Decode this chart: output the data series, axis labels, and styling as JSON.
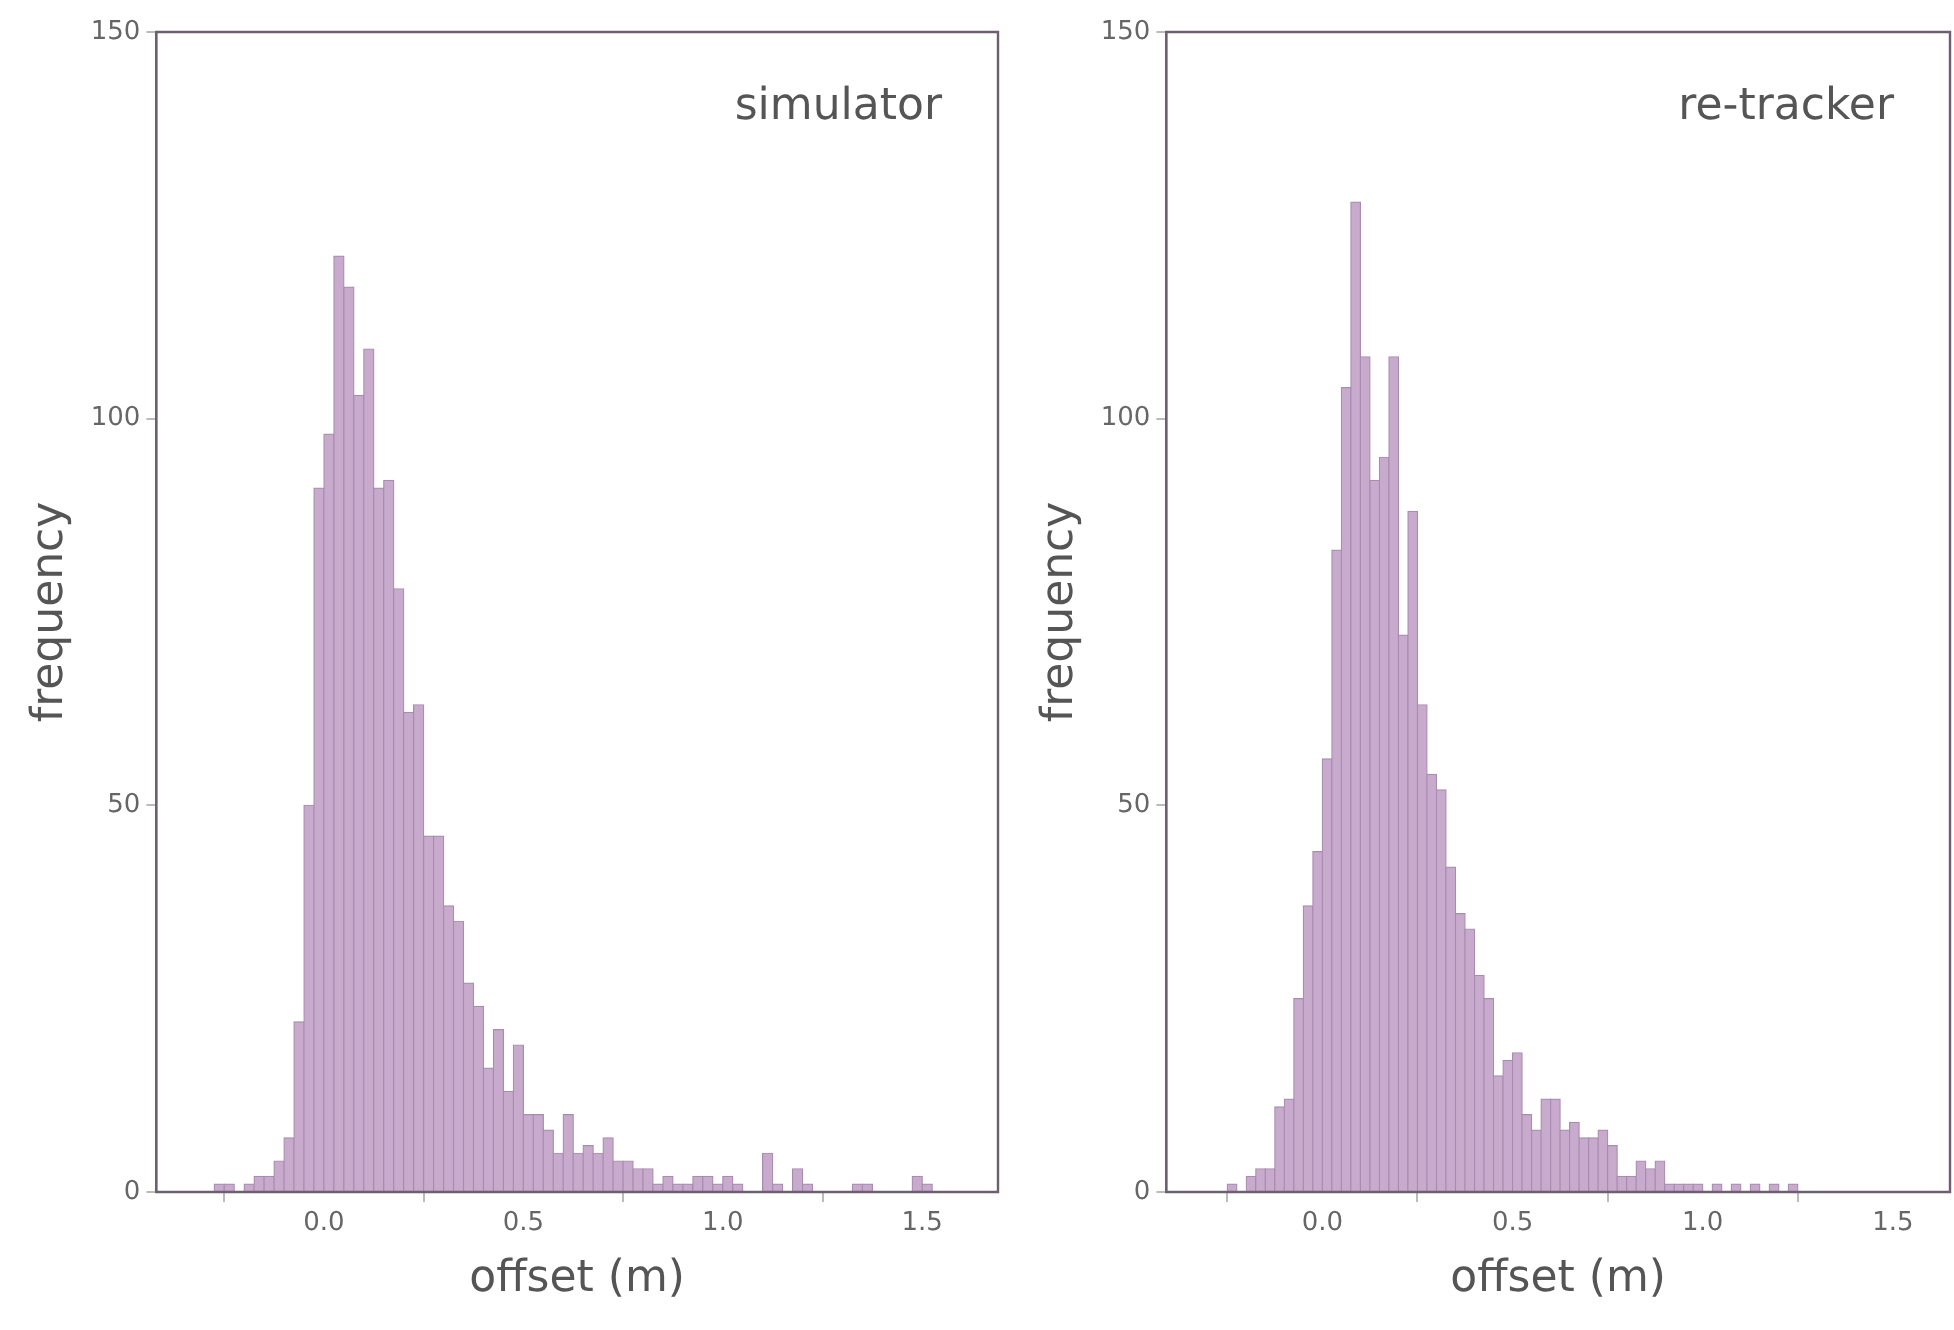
{
  "chart_data": [
    {
      "type": "histogram",
      "title": "simulator",
      "xlabel": "offset (m)",
      "ylabel": "frequency",
      "color": "#c8aacd",
      "bins": [
        -0.3,
        -0.275,
        -0.25,
        -0.225,
        -0.2,
        -0.175,
        -0.15,
        -0.125,
        -0.1,
        -0.075,
        -0.05,
        -0.025,
        0.0,
        0.025,
        0.05,
        0.075,
        0.1,
        0.125,
        0.15,
        0.175,
        0.2,
        0.225,
        0.25,
        0.275,
        0.3,
        0.325,
        0.35,
        0.375,
        0.4,
        0.425,
        0.45,
        0.475,
        0.5,
        0.525,
        0.55,
        0.575,
        0.6,
        0.625,
        0.65,
        0.675,
        0.7,
        0.725,
        0.75,
        0.775,
        0.8,
        0.825,
        0.85,
        0.875,
        0.9,
        0.925,
        0.95,
        0.975,
        1.0,
        1.025,
        1.05,
        1.075,
        1.1,
        1.125,
        1.15,
        1.175,
        1.2,
        1.225,
        1.25,
        1.275,
        1.3,
        1.325,
        1.35,
        1.375,
        1.4,
        1.425,
        1.45,
        1.475,
        1.5,
        1.525,
        1.55,
        1.575,
        1.6
      ],
      "values": [
        0,
        1,
        1,
        0,
        1,
        2,
        2,
        4,
        7,
        22,
        50,
        91,
        98,
        121,
        117,
        103,
        109,
        91,
        92,
        78,
        62,
        63,
        46,
        46,
        37,
        35,
        27,
        24,
        16,
        21,
        13,
        19,
        10,
        10,
        8,
        5,
        10,
        5,
        6,
        5,
        7,
        4,
        4,
        3,
        3,
        1,
        2,
        1,
        1,
        2,
        2,
        1,
        2,
        1,
        0,
        0,
        5,
        1,
        0,
        3,
        1,
        0,
        0,
        0,
        0,
        1,
        1,
        0,
        0,
        0,
        0,
        2,
        1,
        0,
        0,
        0
      ],
      "xlim": [
        -0.42,
        1.69
      ],
      "ylim": [
        0,
        150
      ],
      "xticks": [
        {
          "value": 0,
          "label": "0.0"
        },
        {
          "value": 0.5,
          "label": "0.5"
        },
        {
          "value": 1,
          "label": "1.0"
        },
        {
          "value": 1.5,
          "label": "1.5"
        }
      ],
      "yticks": [
        0,
        50,
        100,
        150
      ]
    },
    {
      "type": "histogram",
      "title": "re-tracker",
      "xlabel": "offset (m)",
      "ylabel": "frequency",
      "color": "#c8aacd",
      "bins": [
        -0.3,
        -0.275,
        -0.25,
        -0.225,
        -0.2,
        -0.175,
        -0.15,
        -0.125,
        -0.1,
        -0.075,
        -0.05,
        -0.025,
        0.0,
        0.025,
        0.05,
        0.075,
        0.1,
        0.125,
        0.15,
        0.175,
        0.2,
        0.225,
        0.25,
        0.275,
        0.3,
        0.325,
        0.35,
        0.375,
        0.4,
        0.425,
        0.45,
        0.475,
        0.5,
        0.525,
        0.55,
        0.575,
        0.6,
        0.625,
        0.65,
        0.675,
        0.7,
        0.725,
        0.75,
        0.775,
        0.8,
        0.825,
        0.85,
        0.875,
        0.9,
        0.925,
        0.95,
        0.975,
        1.0,
        1.025,
        1.05,
        1.075,
        1.1,
        1.125,
        1.15,
        1.175,
        1.2,
        1.225,
        1.25,
        1.275,
        1.3,
        1.325,
        1.35,
        1.375,
        1.4,
        1.425,
        1.45,
        1.475,
        1.5,
        1.525,
        1.55,
        1.575,
        1.6
      ],
      "values": [
        0,
        0,
        1,
        0,
        2,
        3,
        3,
        11,
        12,
        25,
        37,
        44,
        56,
        83,
        104,
        128,
        108,
        92,
        95,
        108,
        72,
        88,
        63,
        54,
        52,
        42,
        36,
        34,
        28,
        25,
        15,
        17,
        18,
        10,
        8,
        12,
        12,
        8,
        9,
        7,
        7,
        8,
        6,
        2,
        2,
        4,
        3,
        4,
        1,
        1,
        1,
        1,
        0,
        1,
        0,
        1,
        0,
        1,
        0,
        1,
        0,
        1,
        0,
        0,
        0,
        0,
        0,
        0,
        0,
        0,
        0,
        0,
        0,
        0,
        0,
        0
      ],
      "xlim": [
        -0.41,
        1.65
      ],
      "ylim": [
        0,
        150
      ],
      "xticks": [
        {
          "value": 0,
          "label": "0.0"
        },
        {
          "value": 0.5,
          "label": "0.5"
        },
        {
          "value": 1,
          "label": "1.0"
        },
        {
          "value": 1.5,
          "label": "1.5"
        }
      ],
      "yticks": [
        0,
        50,
        100,
        150
      ]
    }
  ]
}
